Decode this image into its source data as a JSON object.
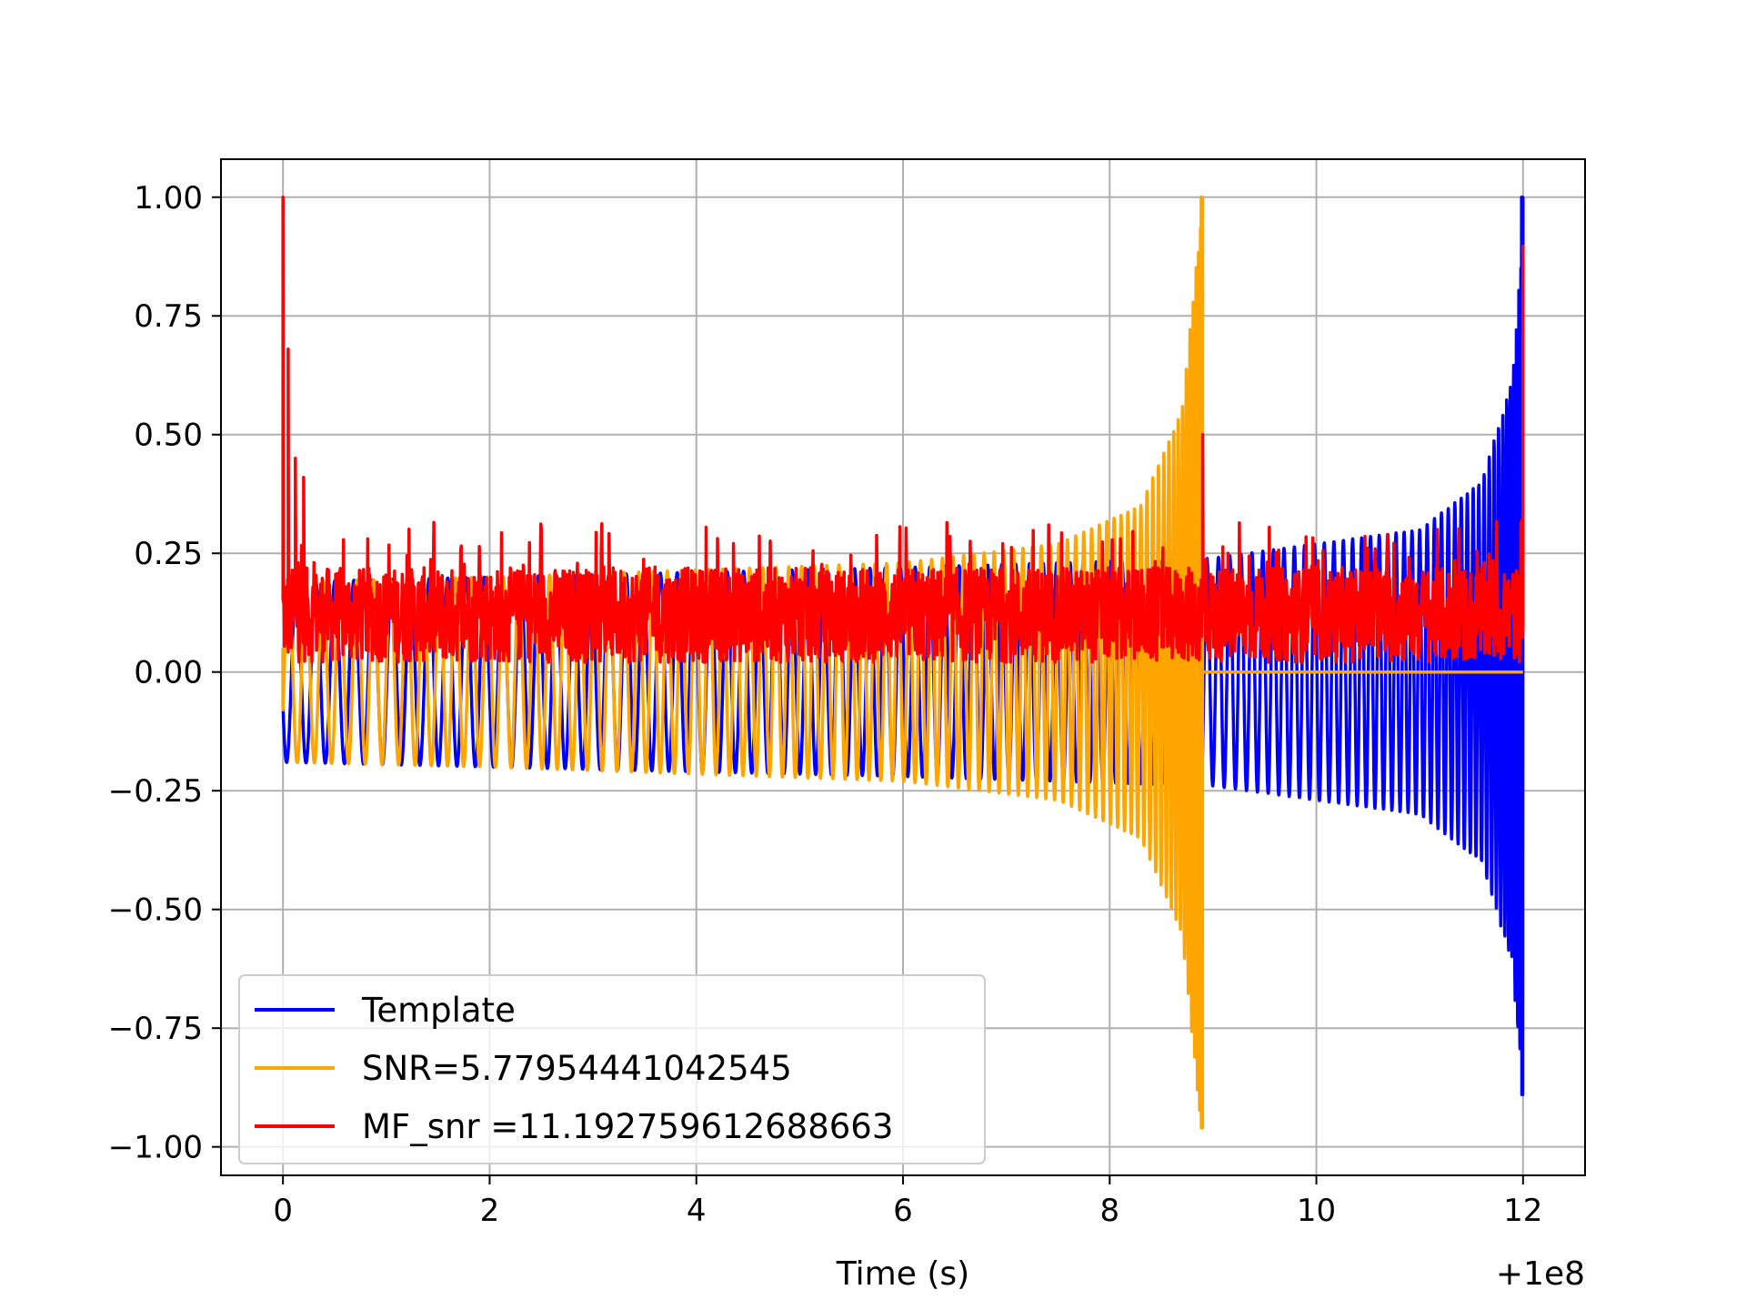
{
  "chart_data": {
    "type": "line",
    "title": "",
    "xlabel": "Time (s)",
    "ylabel": "",
    "x_offset_label": "+1e8",
    "xlim": [
      -0.6,
      12.6
    ],
    "ylim": [
      -1.06,
      1.08
    ],
    "xticks": [
      0,
      2,
      4,
      6,
      8,
      10,
      12
    ],
    "xtick_labels": [
      "0",
      "2",
      "4",
      "6",
      "8",
      "10",
      "12"
    ],
    "yticks": [
      1.0,
      0.75,
      0.5,
      0.25,
      0.0,
      -0.25,
      -0.5,
      -0.75,
      -1.0
    ],
    "ytick_labels": [
      "1.00",
      "0.75",
      "0.50",
      "0.25",
      "0.00",
      "−0.25",
      "−0.50",
      "−0.75",
      "−1.00"
    ],
    "grid": true,
    "legend_position": "lower-left",
    "series": [
      {
        "name": "Template",
        "color": "#0000ff",
        "shape": "chirp",
        "t_start": 0,
        "t_end": 12.0,
        "envelope": [
          [
            0.0,
            0.19
          ],
          [
            2.0,
            0.2
          ],
          [
            6.0,
            0.22
          ],
          [
            9.0,
            0.24
          ],
          [
            11.0,
            0.3
          ],
          [
            11.6,
            0.4
          ],
          [
            11.9,
            0.62
          ],
          [
            12.0,
            0.95
          ]
        ],
        "peak_max": 1.0,
        "peak_min": -0.89
      },
      {
        "name": "SNR=5.77954441042545",
        "color": "#ffa500",
        "shape": "chirp",
        "t_start": 0,
        "t_end": 8.9,
        "envelope": [
          [
            0.0,
            0.19
          ],
          [
            2.0,
            0.2
          ],
          [
            6.0,
            0.23
          ],
          [
            7.5,
            0.27
          ],
          [
            8.3,
            0.35
          ],
          [
            8.7,
            0.55
          ],
          [
            8.88,
            0.95
          ]
        ],
        "peak_max": 1.0,
        "peak_min": -0.96
      },
      {
        "name": "MF_snr =11.192759612688663",
        "color": "#ff0000",
        "shape": "noise",
        "t_start": 0,
        "t_end": 12.0,
        "baseline_range": [
          0.0,
          0.25
        ],
        "peaks": [
          [
            0.0,
            1.0
          ],
          [
            0.05,
            0.68
          ],
          [
            0.12,
            0.45
          ],
          [
            0.2,
            0.41
          ],
          [
            8.9,
            0.5
          ],
          [
            12.0,
            0.9
          ]
        ]
      }
    ]
  }
}
